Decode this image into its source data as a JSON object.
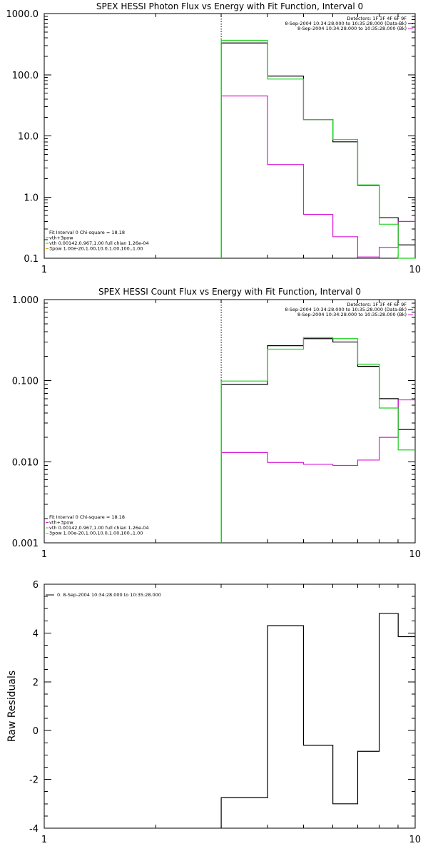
{
  "chart_data": [
    {
      "type": "line",
      "title": "SPEX HESSI Photon Flux vs Energy with Fit Function, Interval 0",
      "xlim": [
        1,
        10
      ],
      "x_scale": "log",
      "ylim": [
        0.1,
        1000
      ],
      "y_scale": "log",
      "xticks": [
        "1",
        "10"
      ],
      "yticks": [
        "0.1",
        "1.0",
        "10.0",
        "100.0",
        "1000.0"
      ],
      "marker_x": 3,
      "legend_right": [
        "Detectors: 1F 3F 4F 6F 9F",
        "8-Sep-2004 10:34:28.000 to 10:35:28.000 (Data-Bk)",
        "8-Sep-2004 10:34:28.000 to 10:35:28.000 (Bk)"
      ],
      "legend_left": [
        "Fit Interval 0   Chi-square = 18.18",
        "vth+3pow",
        "vth 0.00142,0.967,1.00   full chian 1.26e-04",
        "3pow 1.00e-20,1.00,10.0,1.00,100.,1.00"
      ],
      "bin_edges": [
        3,
        4,
        5,
        6,
        7,
        8,
        9,
        10
      ],
      "series": [
        {
          "name": "8-Sep-2004 10:34:28.000 to 10:35:28.000 (Data-Bk)",
          "color": "#000000",
          "values": [
            330,
            95,
            18.5,
            8.0,
            1.55,
            0.46,
            0.165
          ]
        },
        {
          "name": "8-Sep-2004 10:34:28.000 to 10:35:28.000 (Bk)",
          "color": "#d81ad8",
          "values": [
            45,
            3.4,
            0.52,
            0.225,
            0.105,
            0.15,
            0.4
          ]
        },
        {
          "name": "vth+3pow",
          "color": "#1cd21c",
          "values": [
            365,
            85,
            18.5,
            8.7,
            1.58,
            0.36,
            0.1
          ]
        }
      ]
    },
    {
      "type": "line",
      "title": "SPEX HESSI Count Flux vs Energy with Fit Function, Interval 0",
      "xlim": [
        1,
        10
      ],
      "x_scale": "log",
      "ylim": [
        0.001,
        1
      ],
      "y_scale": "log",
      "xticks": [
        "1",
        "10"
      ],
      "yticks": [
        "0.001",
        "0.010",
        "0.100",
        "1.000"
      ],
      "marker_x": 3,
      "legend_right": [
        "Detectors: 1F 3F 4F 6F 9F",
        "8-Sep-2004 10:34:28.000 to 10:35:28.000 (Data-Bk)",
        "8-Sep-2004 10:34:28.000 to 10:35:28.000 (Bk)"
      ],
      "legend_left": [
        "Fit Interval 0   Chi-square = 18.18",
        "vth+3pow",
        "vth 0.00142,0.967,1.00   full chian 1.26e-04",
        "3pow 1.00e-20,1.00,10.0,1.00,100.,1.00"
      ],
      "bin_edges": [
        3,
        4,
        5,
        6,
        7,
        8,
        9,
        10
      ],
      "series": [
        {
          "name": "8-Sep-2004 10:34:28.000 to 10:35:28.000 (Data-Bk)",
          "color": "#000000",
          "values": [
            0.09,
            0.27,
            0.33,
            0.3,
            0.15,
            0.06,
            0.025
          ]
        },
        {
          "name": "8-Sep-2004 10:34:28.000 to 10:35:28.000 (Bk)",
          "color": "#d81ad8",
          "values": [
            0.013,
            0.0098,
            0.0093,
            0.009,
            0.0105,
            0.02,
            0.058
          ]
        },
        {
          "name": "vth+3pow",
          "color": "#1cd21c",
          "values": [
            0.099,
            0.245,
            0.34,
            0.33,
            0.16,
            0.046,
            0.014
          ]
        }
      ]
    },
    {
      "type": "line",
      "title": "",
      "ylabel": "Raw Residuals",
      "xlim": [
        1,
        10
      ],
      "x_scale": "log",
      "ylim": [
        -4,
        6
      ],
      "xticks": [
        "1",
        "10"
      ],
      "yticks": [
        "-4",
        "-2",
        "0",
        "2",
        "4",
        "6"
      ],
      "legend_left": [
        "0. 8-Sep-2004 10:34:28.000 to 10:35:28.000"
      ],
      "bin_edges": [
        3,
        4,
        5,
        6,
        7,
        8,
        9,
        10
      ],
      "series": [
        {
          "name": "0. 8-Sep-2004 10:34:28.000 to 10:35:28.000",
          "color": "#000000",
          "values": [
            -2.75,
            4.3,
            -0.6,
            -3.0,
            -0.85,
            4.8,
            3.85
          ]
        }
      ]
    }
  ]
}
